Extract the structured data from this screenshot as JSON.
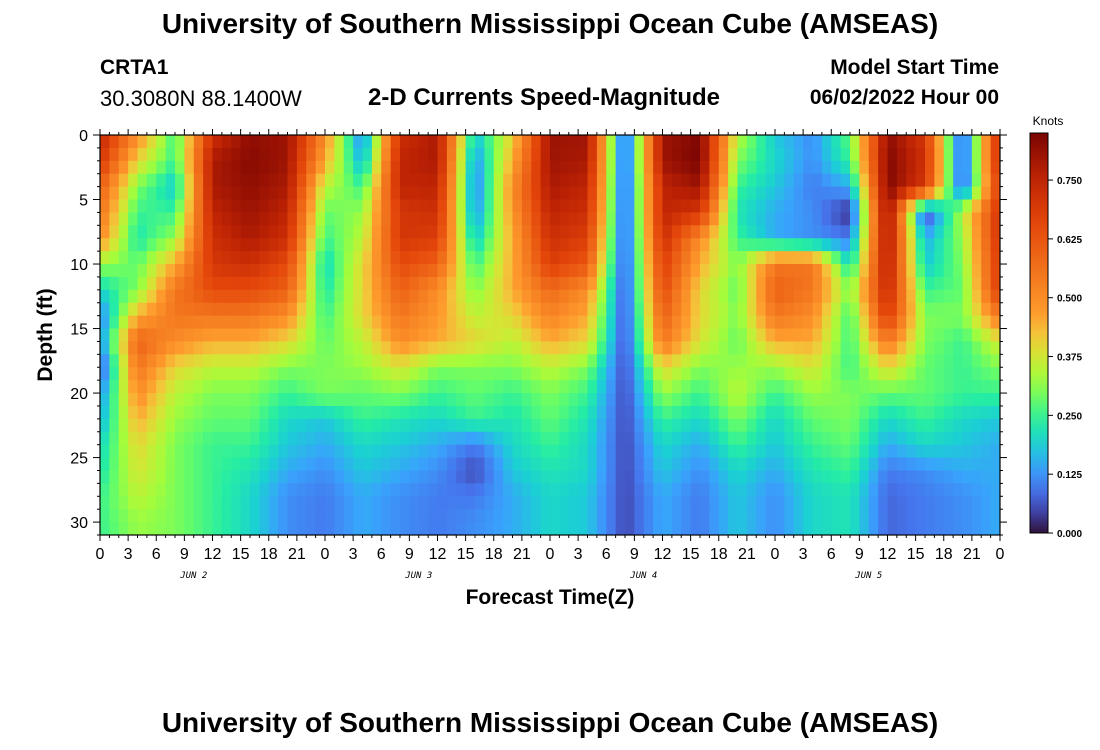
{
  "header": {
    "main_title": "University of Southern Mississippi Ocean Cube (AMSEAS)",
    "station_id": "CRTA1",
    "station_coords": "30.3080N  88.1400W",
    "plot_title": "2-D Currents Speed-Magnitude",
    "model_start_label": "Model Start Time",
    "model_start_value": "06/02/2022 Hour 00"
  },
  "footer": {
    "repeated_title": "University of Southern Mississippi Ocean Cube (AMSEAS)"
  },
  "chart_data": {
    "type": "heatmap",
    "title": "2-D Currents Speed-Magnitude",
    "xlabel": "Forecast Time(Z)",
    "ylabel": "Depth (ft)",
    "x_ticks": [
      "0",
      "3",
      "6",
      "9",
      "12",
      "15",
      "18",
      "21",
      "0",
      "3",
      "6",
      "9",
      "12",
      "15",
      "18",
      "21",
      "0",
      "3",
      "6",
      "9",
      "12",
      "15",
      "18",
      "21",
      "0",
      "3",
      "6",
      "9",
      "12",
      "15",
      "18",
      "21",
      "0"
    ],
    "x_hours_range": [
      0,
      96
    ],
    "date_labels": [
      {
        "label": "JUN 2",
        "hour": 10
      },
      {
        "label": "JUN 3",
        "hour": 34
      },
      {
        "label": "JUN 4",
        "hour": 58
      },
      {
        "label": "JUN 5",
        "hour": 82
      }
    ],
    "y_ticks": [
      0,
      5,
      10,
      15,
      20,
      25,
      30
    ],
    "ylim": [
      0,
      31
    ],
    "y_inverted": true,
    "colorbar": {
      "label": "Knots",
      "ticks": [
        "0.000",
        "0.125",
        "0.250",
        "0.375",
        "0.500",
        "0.625",
        "0.750"
      ],
      "range": [
        0,
        0.85
      ]
    },
    "grid_hours": [
      0,
      4,
      8,
      12,
      16,
      20,
      24,
      28,
      32,
      36,
      40,
      44,
      48,
      52,
      56,
      60,
      64,
      68,
      72,
      76,
      80,
      84,
      88,
      92,
      96
    ],
    "grid_depths": [
      0,
      2,
      4,
      6,
      8,
      10,
      12,
      14,
      16,
      18,
      20,
      22,
      24,
      26,
      28,
      30
    ],
    "values_knots": [
      [
        0.75,
        0.5,
        0.25,
        0.72,
        0.82,
        0.8,
        0.5,
        0.1,
        0.72,
        0.78,
        0.18,
        0.4,
        0.8,
        0.8,
        0.05,
        0.8,
        0.84,
        0.35,
        0.18,
        0.12,
        0.28,
        0.82,
        0.7,
        0.05,
        0.75
      ],
      [
        0.7,
        0.4,
        0.25,
        0.78,
        0.83,
        0.8,
        0.45,
        0.15,
        0.75,
        0.78,
        0.12,
        0.45,
        0.8,
        0.78,
        0.05,
        0.8,
        0.85,
        0.3,
        0.2,
        0.12,
        0.25,
        0.84,
        0.72,
        0.05,
        0.75
      ],
      [
        0.6,
        0.3,
        0.18,
        0.78,
        0.82,
        0.78,
        0.35,
        0.25,
        0.75,
        0.75,
        0.1,
        0.5,
        0.78,
        0.75,
        0.05,
        0.75,
        0.8,
        0.25,
        0.18,
        0.1,
        0.15,
        0.84,
        0.7,
        0.05,
        0.7
      ],
      [
        0.55,
        0.25,
        0.25,
        0.75,
        0.8,
        0.75,
        0.28,
        0.32,
        0.7,
        0.72,
        0.12,
        0.48,
        0.75,
        0.72,
        0.05,
        0.75,
        0.7,
        0.22,
        0.15,
        0.12,
        0.02,
        0.82,
        0.03,
        0.35,
        0.72
      ],
      [
        0.5,
        0.22,
        0.32,
        0.72,
        0.78,
        0.72,
        0.25,
        0.35,
        0.7,
        0.68,
        0.18,
        0.45,
        0.72,
        0.68,
        0.05,
        0.72,
        0.5,
        0.25,
        0.15,
        0.12,
        0.1,
        0.8,
        0.15,
        0.32,
        0.72
      ],
      [
        0.32,
        0.28,
        0.45,
        0.7,
        0.72,
        0.65,
        0.2,
        0.4,
        0.65,
        0.6,
        0.25,
        0.45,
        0.68,
        0.62,
        0.05,
        0.68,
        0.45,
        0.3,
        0.55,
        0.55,
        0.2,
        0.78,
        0.18,
        0.3,
        0.7
      ],
      [
        0.2,
        0.3,
        0.55,
        0.65,
        0.65,
        0.6,
        0.22,
        0.4,
        0.6,
        0.5,
        0.3,
        0.45,
        0.58,
        0.5,
        0.05,
        0.65,
        0.4,
        0.28,
        0.6,
        0.55,
        0.3,
        0.75,
        0.25,
        0.28,
        0.7
      ],
      [
        0.1,
        0.45,
        0.55,
        0.55,
        0.55,
        0.5,
        0.25,
        0.4,
        0.55,
        0.48,
        0.35,
        0.4,
        0.52,
        0.45,
        0.05,
        0.6,
        0.4,
        0.3,
        0.55,
        0.5,
        0.25,
        0.7,
        0.3,
        0.3,
        0.55
      ],
      [
        0.12,
        0.6,
        0.5,
        0.45,
        0.45,
        0.4,
        0.28,
        0.35,
        0.5,
        0.45,
        0.4,
        0.35,
        0.45,
        0.4,
        0.05,
        0.55,
        0.38,
        0.28,
        0.45,
        0.45,
        0.25,
        0.55,
        0.3,
        0.25,
        0.38
      ],
      [
        0.05,
        0.55,
        0.4,
        0.35,
        0.35,
        0.3,
        0.3,
        0.32,
        0.38,
        0.3,
        0.3,
        0.3,
        0.35,
        0.3,
        0.05,
        0.4,
        0.3,
        0.32,
        0.32,
        0.38,
        0.25,
        0.4,
        0.28,
        0.25,
        0.3
      ],
      [
        0.12,
        0.5,
        0.35,
        0.3,
        0.3,
        0.25,
        0.3,
        0.28,
        0.3,
        0.25,
        0.28,
        0.25,
        0.3,
        0.25,
        0.05,
        0.32,
        0.25,
        0.35,
        0.25,
        0.32,
        0.3,
        0.28,
        0.28,
        0.25,
        0.25
      ],
      [
        0.15,
        0.45,
        0.32,
        0.28,
        0.28,
        0.2,
        0.18,
        0.25,
        0.22,
        0.2,
        0.25,
        0.22,
        0.28,
        0.22,
        0.05,
        0.25,
        0.2,
        0.3,
        0.2,
        0.28,
        0.3,
        0.2,
        0.25,
        0.2,
        0.18
      ],
      [
        0.2,
        0.4,
        0.3,
        0.25,
        0.25,
        0.18,
        0.15,
        0.2,
        0.18,
        0.15,
        0.1,
        0.2,
        0.25,
        0.2,
        0.05,
        0.2,
        0.15,
        0.25,
        0.18,
        0.25,
        0.28,
        0.15,
        0.2,
        0.18,
        0.15
      ],
      [
        0.22,
        0.38,
        0.3,
        0.25,
        0.22,
        0.15,
        0.12,
        0.18,
        0.15,
        0.12,
        0.05,
        0.18,
        0.22,
        0.2,
        0.05,
        0.18,
        0.12,
        0.2,
        0.15,
        0.22,
        0.25,
        0.1,
        0.12,
        0.15,
        0.15
      ],
      [
        0.25,
        0.35,
        0.3,
        0.25,
        0.2,
        0.12,
        0.1,
        0.15,
        0.12,
        0.1,
        0.1,
        0.15,
        0.2,
        0.18,
        0.05,
        0.15,
        0.1,
        0.18,
        0.12,
        0.2,
        0.22,
        0.08,
        0.1,
        0.12,
        0.15
      ],
      [
        0.25,
        0.32,
        0.3,
        0.25,
        0.2,
        0.12,
        0.1,
        0.15,
        0.12,
        0.1,
        0.12,
        0.15,
        0.2,
        0.18,
        0.05,
        0.15,
        0.1,
        0.18,
        0.12,
        0.2,
        0.22,
        0.08,
        0.1,
        0.12,
        0.15
      ]
    ]
  }
}
